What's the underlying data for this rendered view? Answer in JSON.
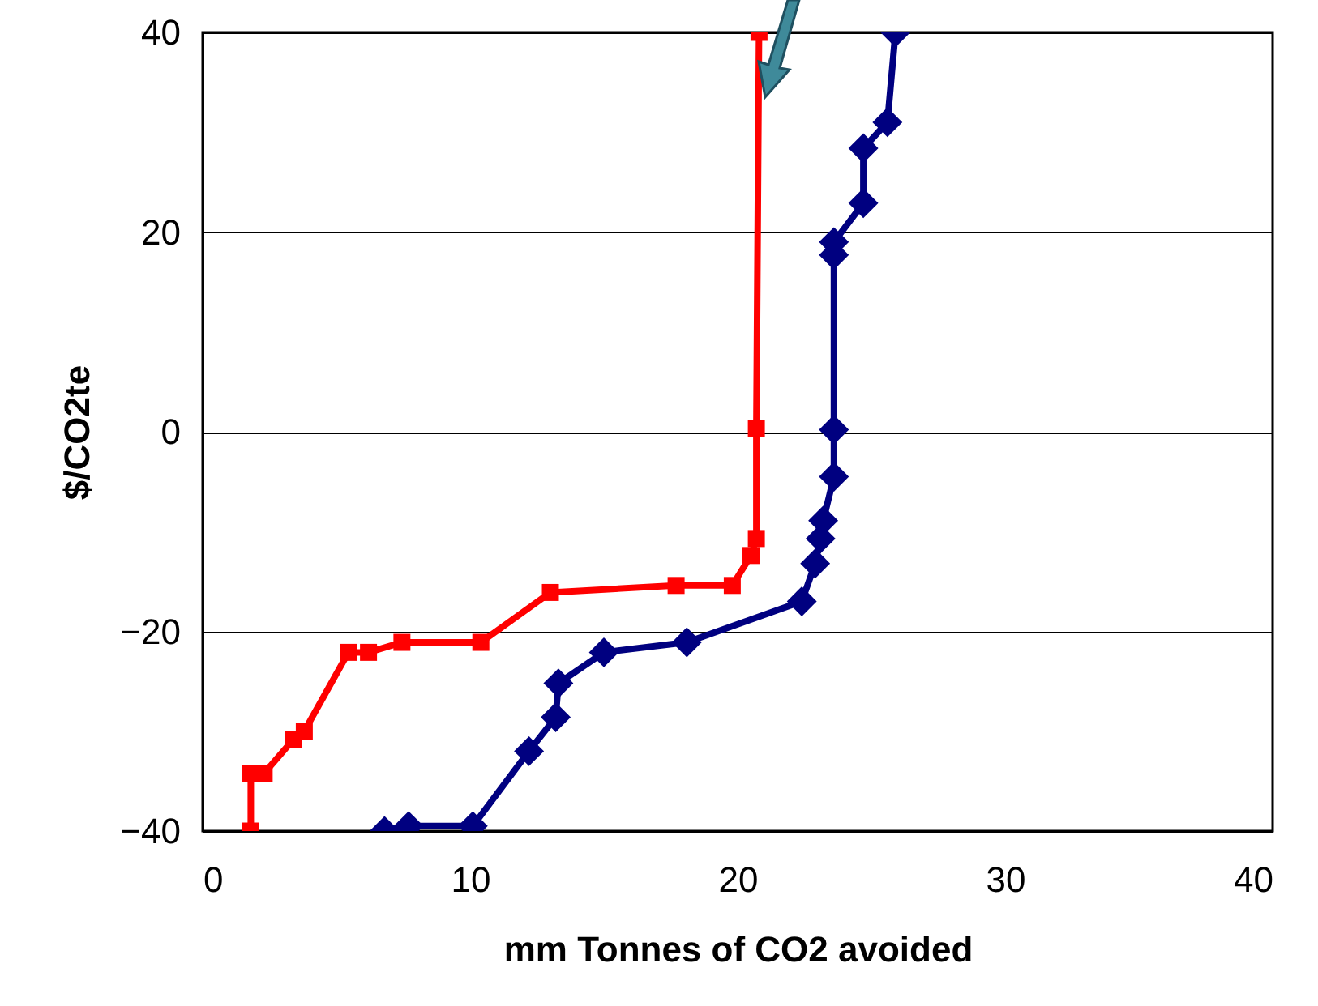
{
  "chart_data": {
    "type": "line",
    "xlabel": "mm Tonnes of CO2 avoided",
    "ylabel": "$/CO2te",
    "xlim": [
      0,
      40
    ],
    "xticks": [
      0,
      10,
      20,
      30,
      40
    ],
    "ylim": [
      -40,
      40
    ],
    "yticks": [
      -40,
      -20,
      0,
      20,
      40
    ],
    "grid": "y",
    "line_style": "solid",
    "series": [
      {
        "color": "#ff0000",
        "marker": "square",
        "x": [
          1.8,
          1.8,
          2.3,
          3.4,
          3.8,
          5.45,
          6.2,
          7.45,
          10.4,
          13.0,
          17.7,
          19.8,
          20.5,
          20.7,
          20.7,
          20.8
        ],
        "values": [
          -40,
          -34.2,
          -34.2,
          -30.8,
          -30.0,
          -22.1,
          -22.1,
          -21.1,
          -21.1,
          -16.1,
          -15.4,
          -15.4,
          -12.4,
          -10.7,
          0.3,
          40
        ]
      },
      {
        "color": "#000080",
        "marker": "diamond",
        "x": [
          6.8,
          7.7,
          10.1,
          12.2,
          13.2,
          13.3,
          15.0,
          18.1,
          22.4,
          22.9,
          23.1,
          23.2,
          23.6,
          23.6,
          23.6,
          23.6,
          24.7,
          24.7,
          25.6,
          25.9
        ],
        "values": [
          -40,
          -39.5,
          -39.5,
          -32.0,
          -28.6,
          -25.2,
          -22.1,
          -21.1,
          -17.0,
          -13.2,
          -10.7,
          -8.9,
          -4.5,
          0.2,
          17.7,
          19.0,
          22.9,
          28.4,
          31.0,
          40
        ]
      }
    ]
  }
}
